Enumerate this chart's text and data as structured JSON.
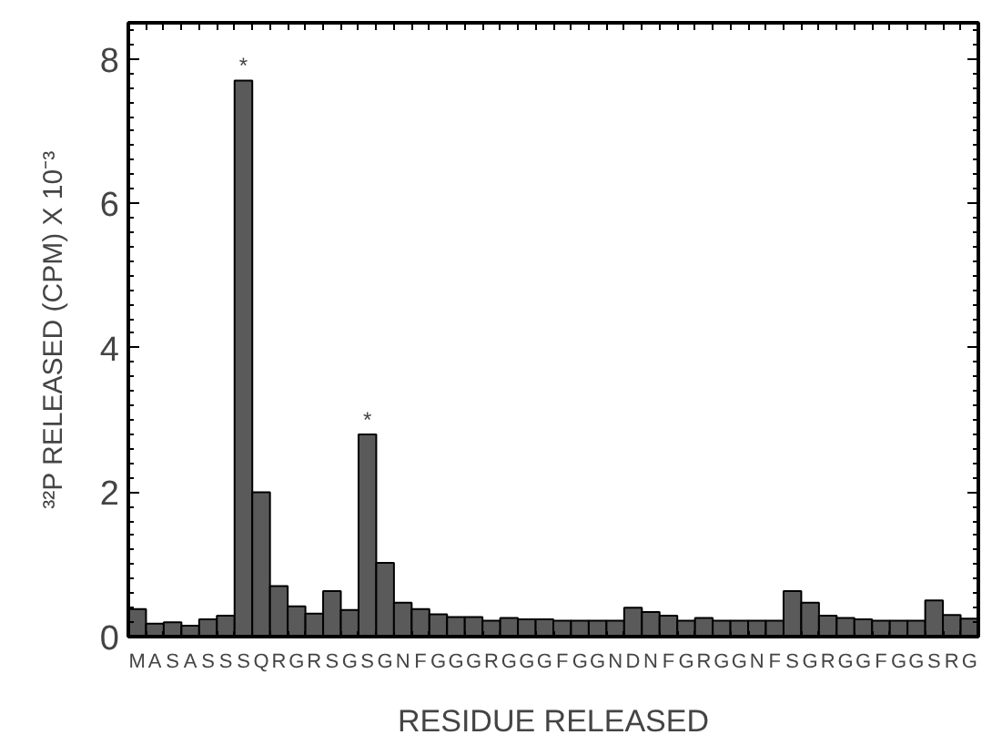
{
  "chart_data": {
    "type": "bar",
    "xlabel": "RESIDUE RELEASED",
    "ylabel": "³²P RELEASED (CPM) X 10⁻³",
    "categories": [
      "M",
      "A",
      "S",
      "A",
      "S",
      "S",
      "S",
      "Q",
      "R",
      "G",
      "R",
      "S",
      "G",
      "S",
      "G",
      "N",
      "F",
      "G",
      "G",
      "G",
      "R",
      "G",
      "G",
      "G",
      "F",
      "G",
      "G",
      "N",
      "D",
      "N",
      "F",
      "G",
      "R",
      "G",
      "G",
      "N",
      "F",
      "S",
      "G",
      "R",
      "G",
      "G",
      "F",
      "G",
      "G",
      "S",
      "R",
      "G"
    ],
    "values": [
      0.38,
      0.18,
      0.2,
      0.15,
      0.24,
      0.29,
      7.7,
      2.0,
      0.7,
      0.42,
      0.32,
      0.63,
      0.37,
      2.8,
      1.02,
      0.47,
      0.38,
      0.31,
      0.27,
      0.27,
      0.22,
      0.26,
      0.24,
      0.24,
      0.22,
      0.22,
      0.22,
      0.22,
      0.4,
      0.34,
      0.29,
      0.22,
      0.26,
      0.22,
      0.22,
      0.22,
      0.22,
      0.63,
      0.47,
      0.29,
      0.26,
      0.24,
      0.22,
      0.22,
      0.22,
      0.5,
      0.3,
      0.25
    ],
    "color": "#5a5a5a",
    "ylim": [
      0,
      8.5
    ],
    "yticks": [
      0,
      2,
      4,
      6,
      8
    ],
    "grid": false,
    "annotations": [
      "*",
      "*"
    ]
  }
}
